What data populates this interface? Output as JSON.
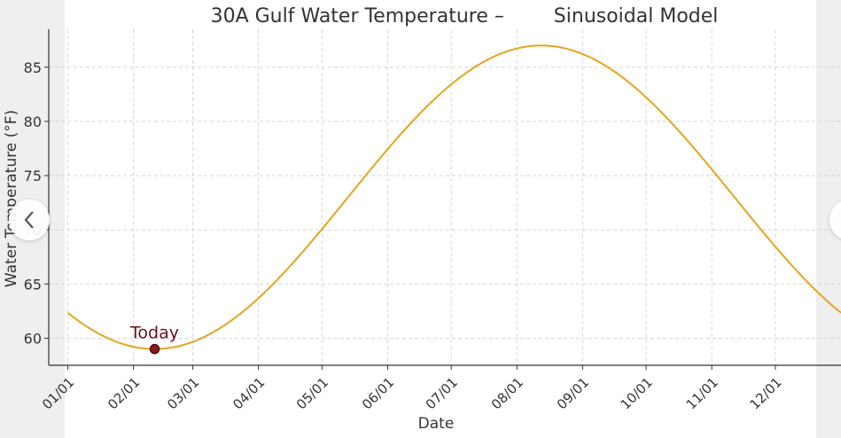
{
  "chart_data": {
    "type": "line",
    "title": "30A Gulf Water Temperature –        Sinusoidal Model",
    "xlabel": "Date",
    "ylabel": "Water Temperature (°F)",
    "x_tick_labels": [
      "01/01",
      "02/01",
      "03/01",
      "04/01",
      "05/01",
      "06/01",
      "07/01",
      "08/01",
      "09/01",
      "10/01",
      "11/01",
      "12/01"
    ],
    "x_tick_days": [
      0,
      31,
      59,
      90,
      120,
      151,
      181,
      212,
      243,
      273,
      304,
      334
    ],
    "y_ticks": [
      60,
      65,
      70,
      75,
      80,
      85
    ],
    "ylim": [
      57.5,
      88.5
    ],
    "xlim_days": [
      -9,
      365
    ],
    "model": {
      "mean": 73,
      "amplitude": 14,
      "min_day": 41,
      "period_days": 365
    },
    "curve_color": "#e3a51e",
    "grid": true,
    "annotation": {
      "label": "Today",
      "date": "02/11",
      "day": 41,
      "value": 59,
      "color": "#6b0f1a"
    }
  },
  "nav": {
    "prev_icon": "chevron-left-icon",
    "next_icon": "chevron-right-icon"
  }
}
